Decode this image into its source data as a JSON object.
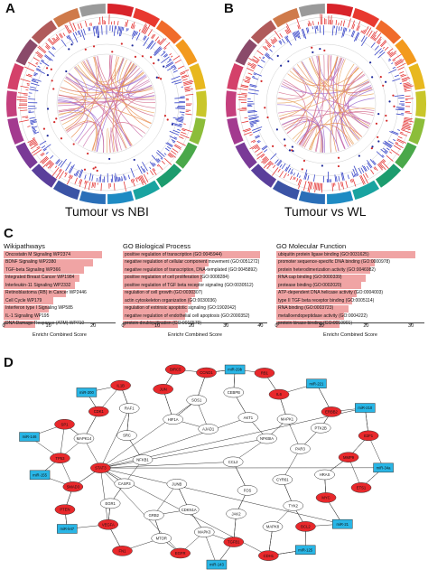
{
  "panels": {
    "a": "A",
    "b": "B",
    "c": "C",
    "d": "D"
  },
  "captions": {
    "a": "Tumour vs NBI",
    "b": "Tumour vs WL"
  },
  "colors": {
    "up": "#e8282b",
    "down": "#29b6e6",
    "other": "#ffffff",
    "bar": "#f0a4a4",
    "gain": "#e43a3a",
    "loss": "#3a47c8"
  },
  "enrichment": [
    {
      "title": "Wikipathways",
      "max": 25,
      "ticks": [
        "0",
        "10",
        "20"
      ],
      "xlabel": "Enrichr Combined Score",
      "terms": [
        {
          "label": "Oncostatin M Signaling WP2374",
          "score": 22
        },
        {
          "label": "BDNF Signaling WP2380",
          "score": 20
        },
        {
          "label": "TGF-beta Signaling WP366",
          "score": 18
        },
        {
          "label": "Integrated Breast Cancer WP1984",
          "score": 17
        },
        {
          "label": "Interleukin-11 Signaling WP2332",
          "score": 16
        },
        {
          "label": "Retinoblastoma (RB) in Cancer WP2446",
          "score": 14
        },
        {
          "label": "Cell Cycle WP179",
          "score": 11
        },
        {
          "label": "Interferon type I Signaling WP585",
          "score": 10
        },
        {
          "label": "IL-1 Signaling WP195",
          "score": 8
        },
        {
          "label": "DNA Damage Response (ATM) WP710",
          "score": 7
        }
      ]
    },
    {
      "title": "GO Biological Process",
      "max": 42,
      "ticks": [
        "0",
        "10",
        "20",
        "30",
        "40"
      ],
      "xlabel": "Enrichr Combined Score",
      "terms": [
        {
          "label": "positive regulation of transcription (GO:0045944)",
          "score": 40
        },
        {
          "label": "negative regulation of cellular component movement (GO:0051272)",
          "score": 25
        },
        {
          "label": "negative regulation of transcription, DNA-templated (GO:0045892)",
          "score": 24
        },
        {
          "label": "positive regulation of cell proliferation (GO:0008284)",
          "score": 23
        },
        {
          "label": "positive regulation of TGF beta receptor signaling (GO:0030512)",
          "score": 22
        },
        {
          "label": "regulation of cell growth (GO:0030307)",
          "score": 21
        },
        {
          "label": "actin cytoskeleton organization (GO:0030036)",
          "score": 20
        },
        {
          "label": "regulation of extrinsic apoptotic signaling (GO:1902042)",
          "score": 19
        },
        {
          "label": "negative regulation of endothelial cell apoptosis (GO:2000352)",
          "score": 18
        },
        {
          "label": "protein deubiquitination (GO:0016579)",
          "score": 16
        }
      ]
    },
    {
      "title": "GO Molecular Function",
      "max": 33,
      "ticks": [
        "0",
        "10",
        "20",
        "30"
      ],
      "xlabel": "Enrichr Combined Score",
      "terms": [
        {
          "label": "ubiquitin protein ligase binding (GO:0031625)",
          "score": 31
        },
        {
          "label": "promoter sequence-specific DNA binding (GO:0000978)",
          "score": 22
        },
        {
          "label": "protein heterodimerization activity (GO:0046982)",
          "score": 21
        },
        {
          "label": "RNA cap binding (GO:0000339)",
          "score": 20
        },
        {
          "label": "protease binding (GO:0002020)",
          "score": 19
        },
        {
          "label": "ATP-dependent DNA helicase activity (GO:0004003)",
          "score": 18
        },
        {
          "label": "type II TGF beta receptor binding (GO:0005114)",
          "score": 17
        },
        {
          "label": "RNA binding (GO:0003723)",
          "score": 16
        },
        {
          "label": "metalloendopeptidase activity (GO:0004222)",
          "score": 15
        },
        {
          "label": "protein kinase binding (GO:0019901)",
          "score": 14
        }
      ]
    }
  ],
  "network": {
    "nodes": [
      {
        "id": "CCL2",
        "type": "other"
      },
      {
        "id": "JUNB",
        "type": "other"
      },
      {
        "id": "AJAD1",
        "type": "other"
      },
      {
        "id": "FOS",
        "type": "other"
      },
      {
        "id": "NFKB1",
        "type": "other"
      },
      {
        "id": "NFKBIA",
        "type": "other"
      },
      {
        "id": "CDKN1A",
        "type": "other"
      },
      {
        "id": "HIF1A",
        "type": "other"
      },
      {
        "id": "CYR61",
        "type": "other"
      },
      {
        "id": "CASP3",
        "type": "other"
      },
      {
        "id": "AKT1",
        "type": "other"
      },
      {
        "id": "JAK2",
        "type": "other"
      },
      {
        "id": "SRC",
        "type": "other"
      },
      {
        "id": "PAR3",
        "type": "other"
      },
      {
        "id": "GRB2",
        "type": "other"
      },
      {
        "id": "SOS1",
        "type": "other"
      },
      {
        "id": "TYK2",
        "type": "other"
      },
      {
        "id": "STAT3",
        "type": "up"
      },
      {
        "id": "MAPK1",
        "type": "other"
      },
      {
        "id": "MAPK3",
        "type": "other"
      },
      {
        "id": "RAF1",
        "type": "other"
      },
      {
        "id": "HRAS",
        "type": "other"
      },
      {
        "id": "EGR1",
        "type": "other"
      },
      {
        "id": "CEBPB",
        "type": "other"
      },
      {
        "id": "MAPK8",
        "type": "other"
      },
      {
        "id": "MAPK14",
        "type": "other"
      },
      {
        "id": "PTK2B",
        "type": "other"
      },
      {
        "id": "MTOR",
        "type": "other"
      },
      {
        "id": "JUN",
        "type": "up"
      },
      {
        "id": "MYC",
        "type": "up"
      },
      {
        "id": "SMAD3",
        "type": "up"
      },
      {
        "id": "IL6",
        "type": "up"
      },
      {
        "id": "TGFB1",
        "type": "up"
      },
      {
        "id": "CDK1",
        "type": "up"
      },
      {
        "id": "MMP9",
        "type": "up"
      },
      {
        "id": "VEGFA",
        "type": "up"
      },
      {
        "id": "CCND1",
        "type": "up"
      },
      {
        "id": "BCL2",
        "type": "up"
      },
      {
        "id": "TP53",
        "type": "up"
      },
      {
        "id": "ERBB2",
        "type": "up"
      },
      {
        "id": "EGFR",
        "type": "up"
      },
      {
        "id": "IL1B",
        "type": "up"
      },
      {
        "id": "ETS1",
        "type": "up"
      },
      {
        "id": "PTEN",
        "type": "up"
      },
      {
        "id": "RB1",
        "type": "up"
      },
      {
        "id": "CDH1",
        "type": "up"
      },
      {
        "id": "SP1",
        "type": "up"
      },
      {
        "id": "E2F1",
        "type": "up"
      },
      {
        "id": "FN1",
        "type": "up"
      },
      {
        "id": "BIRC5",
        "type": "up"
      },
      {
        "id": "miR-21",
        "type": "down"
      },
      {
        "id": "miR-155",
        "type": "down"
      },
      {
        "id": "miR-221",
        "type": "down"
      },
      {
        "id": "miR-143",
        "type": "down"
      },
      {
        "id": "miR-200",
        "type": "down"
      },
      {
        "id": "miR-34a",
        "type": "down"
      },
      {
        "id": "miR-let7",
        "type": "down"
      },
      {
        "id": "miR-29b",
        "type": "down"
      },
      {
        "id": "miR-125",
        "type": "down"
      },
      {
        "id": "miR-146",
        "type": "down"
      },
      {
        "id": "miR-210",
        "type": "down"
      }
    ]
  }
}
